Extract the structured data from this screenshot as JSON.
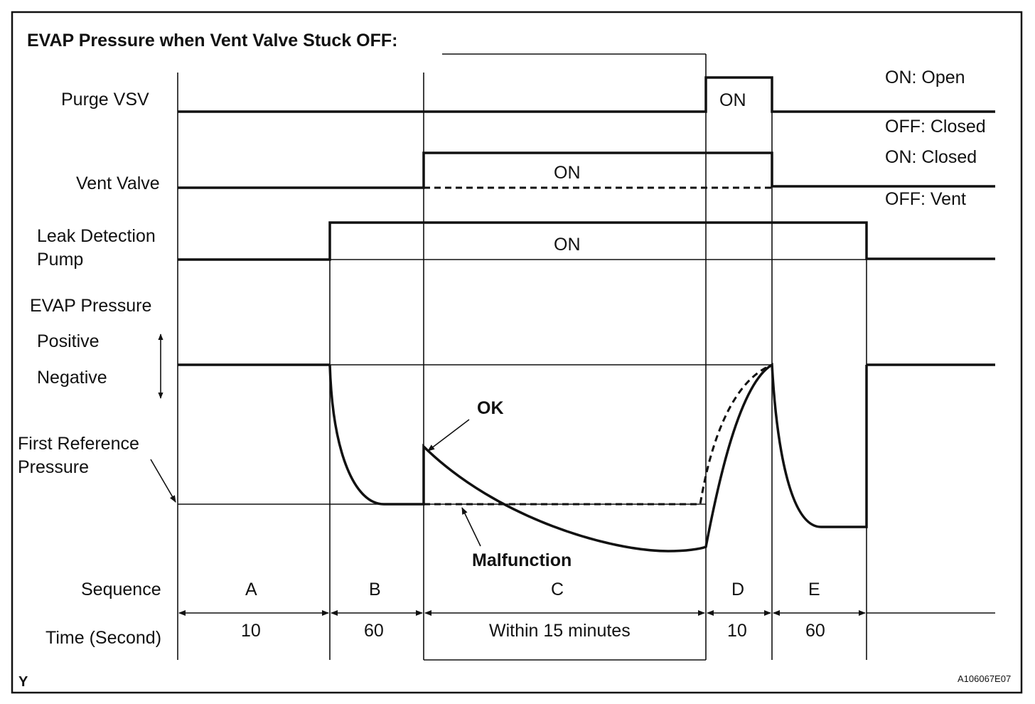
{
  "title": "EVAP Pressure when Vent Valve Stuck OFF:",
  "signals": {
    "purge_vsv": "Purge VSV",
    "vent_valve": "Vent Valve",
    "leak_pump_line1": "Leak Detection",
    "leak_pump_line2": "Pump",
    "evap_pressure": "EVAP Pressure",
    "positive": "Positive",
    "negative": "Negative",
    "first_ref_line1": "First Reference",
    "first_ref_line2": "Pressure"
  },
  "states": {
    "purge_on": "ON: Open",
    "purge_off": "OFF: Closed",
    "vent_on": "ON: Closed",
    "vent_off": "OFF: Vent",
    "on": "ON"
  },
  "annotations": {
    "ok": "OK",
    "malfunction": "Malfunction"
  },
  "sequence": {
    "label": "Sequence",
    "steps": [
      "A",
      "B",
      "C",
      "D",
      "E"
    ]
  },
  "time": {
    "label": "Time (Second)",
    "values": [
      "10",
      "60",
      "Within 15 minutes",
      "10",
      "60"
    ]
  },
  "footer": {
    "corner": "Y",
    "figure_id": "A106067E07"
  }
}
